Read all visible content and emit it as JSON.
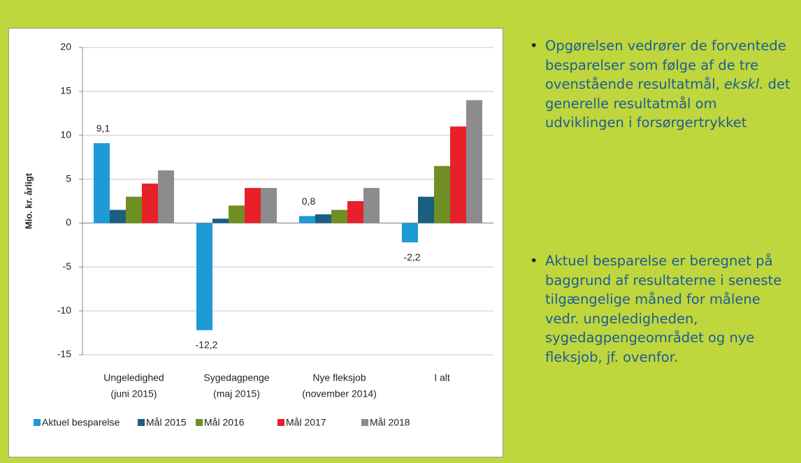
{
  "chart_data": {
    "type": "bar",
    "y_label": "Mio. kr. årligt",
    "categories": [
      [
        "Ungeledighed",
        "(juni 2015)"
      ],
      [
        "Sygedagpenge",
        "(maj 2015)"
      ],
      [
        "Nye fleksjob",
        "(november 2014)"
      ],
      [
        "I alt"
      ]
    ],
    "series": [
      {
        "name": "Aktuel besparelse",
        "color": "#1e9ad6",
        "values": [
          9.1,
          -12.2,
          0.8,
          -2.2
        ],
        "value_labels": [
          "9,1",
          "-12,2",
          "0,8",
          "-2,2"
        ]
      },
      {
        "name": "Mål 2015",
        "color": "#1a5f82",
        "values": [
          1.5,
          0.5,
          1,
          3
        ]
      },
      {
        "name": "Mål 2016",
        "color": "#6f8f23",
        "values": [
          3,
          2,
          1.5,
          6.5
        ]
      },
      {
        "name": "Mål 2017",
        "color": "#e8202a",
        "values": [
          4.5,
          4,
          2.5,
          11
        ]
      },
      {
        "name": "Mål 2018",
        "color": "#8c8c8c",
        "values": [
          6,
          4,
          4,
          14
        ]
      }
    ],
    "ylim": [
      -15,
      20
    ],
    "yticks": [
      -15,
      -10,
      -5,
      0,
      5,
      10,
      15,
      20
    ],
    "grid": true,
    "legend": "bottom"
  },
  "bullets": [
    [
      "Opgørelsen vedrører de forventede besparelser som følge af de tre ovenstående resultatmål, ",
      "ekskl.",
      " det generelle resultatmål om udviklingen i forsørgertrykket"
    ],
    [
      "Aktuel besparelse er beregnet på baggrund af resultaterne i seneste tilgængelige måned for målene vedr. ungeledigheden, sygedagpengeområdet og nye fleksjob, jf. ovenfor."
    ]
  ]
}
